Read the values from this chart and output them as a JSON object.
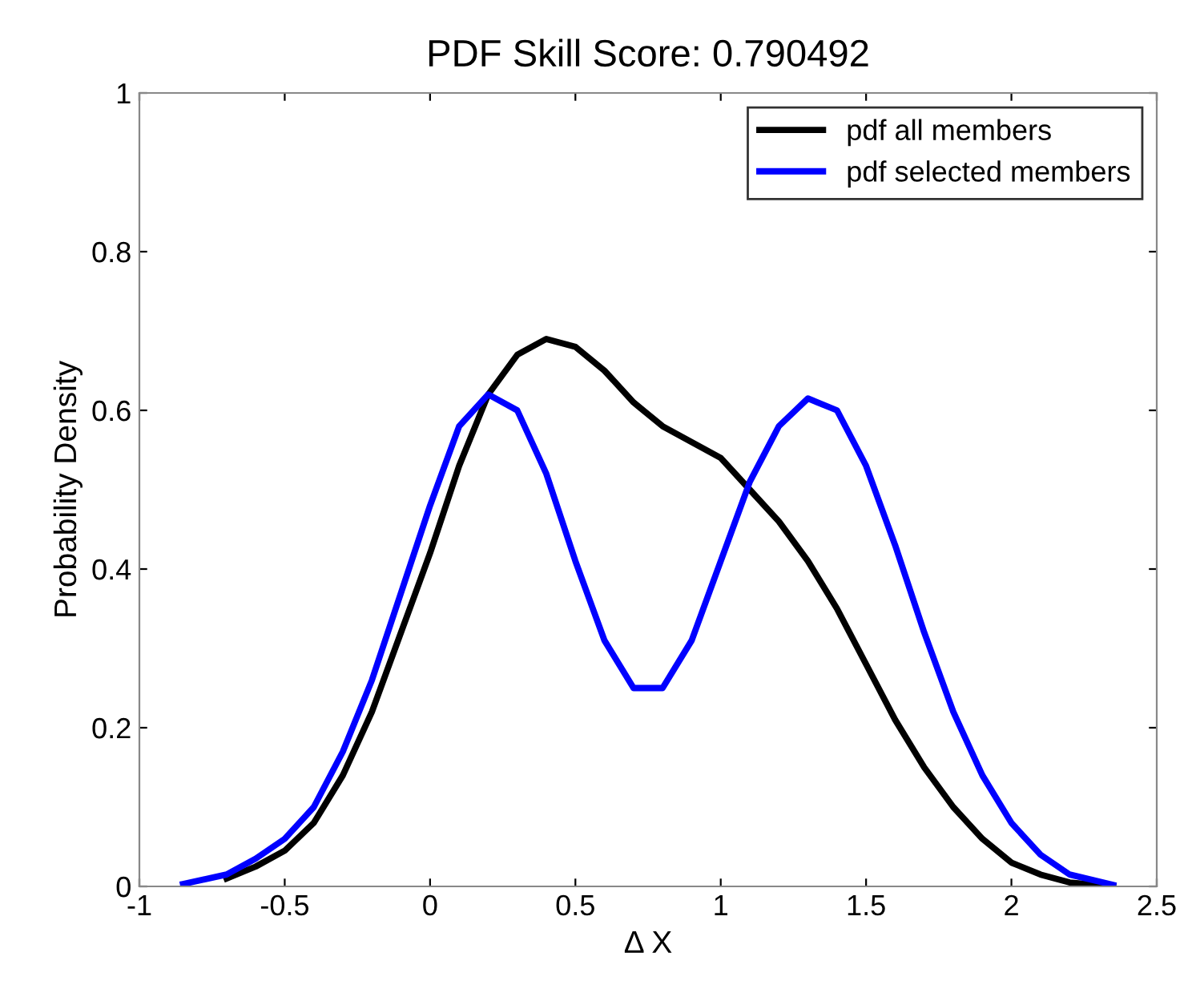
{
  "chart_data": {
    "type": "line",
    "title": "PDF Skill Score: 0.790492",
    "xlabel": "Δ X",
    "ylabel": "Probability Density",
    "x": [
      -0.85,
      -0.7,
      -0.6,
      -0.5,
      -0.4,
      -0.3,
      -0.2,
      -0.1,
      0,
      0.1,
      0.2,
      0.3,
      0.4,
      0.5,
      0.6,
      0.7,
      0.8,
      0.9,
      1.0,
      1.1,
      1.2,
      1.3,
      1.4,
      1.5,
      1.6,
      1.7,
      1.8,
      1.9,
      2.0,
      2.1,
      2.2,
      2.35
    ],
    "series": [
      {
        "name": "pdf all members",
        "color": "#000000",
        "values": [
          null,
          0.01,
          0.025,
          0.045,
          0.08,
          0.14,
          0.22,
          0.32,
          0.42,
          0.53,
          0.62,
          0.67,
          0.69,
          0.68,
          0.65,
          0.61,
          0.58,
          0.56,
          0.54,
          0.5,
          0.46,
          0.41,
          0.35,
          0.28,
          0.21,
          0.15,
          0.1,
          0.06,
          0.03,
          0.015,
          0.005,
          0.0
        ]
      },
      {
        "name": "pdf selected members",
        "color": "#0000ff",
        "values": [
          0.003,
          0.015,
          0.035,
          0.06,
          0.1,
          0.17,
          0.26,
          0.37,
          0.48,
          0.58,
          0.62,
          0.6,
          0.52,
          0.41,
          0.31,
          0.25,
          0.25,
          0.31,
          0.41,
          0.51,
          0.58,
          0.615,
          0.6,
          0.53,
          0.43,
          0.32,
          0.22,
          0.14,
          0.08,
          0.04,
          0.015,
          0.002
        ]
      }
    ],
    "xlim": [
      -1,
      2.5
    ],
    "xticks": [
      -1,
      -0.5,
      0,
      0.5,
      1,
      1.5,
      2,
      2.5
    ],
    "ylim": [
      0,
      1
    ],
    "yticks": [
      0,
      0.2,
      0.4,
      0.6,
      0.8,
      1
    ],
    "grid": false,
    "legend": "top right",
    "marker": "none",
    "line_style": "solid"
  }
}
